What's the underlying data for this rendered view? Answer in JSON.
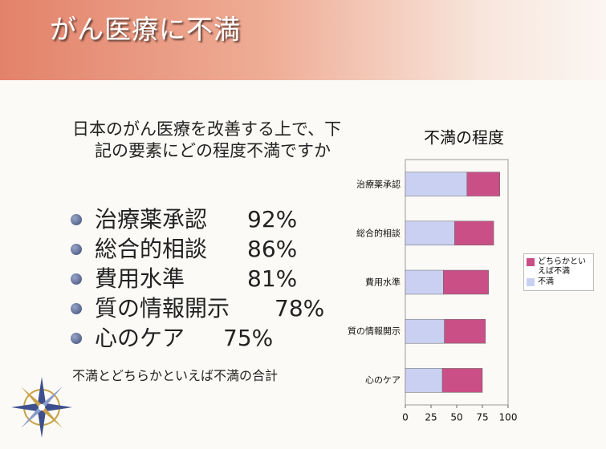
{
  "header": {
    "title": "がん医療に不満"
  },
  "question": "日本のがん医療を改善する上で、下記の要素にどの程度不満ですか",
  "items": [
    {
      "label": "治療薬承認",
      "value": "92%"
    },
    {
      "label": "総合的相談",
      "value": "86%"
    },
    {
      "label": "費用水準",
      "value": "81%"
    },
    {
      "label": "質の情報開示",
      "value": "78%"
    },
    {
      "label": "心のケア",
      "value": "75%"
    }
  ],
  "note": "不満とどちらかといえば不満の合計",
  "chart_data": {
    "type": "bar",
    "orientation": "horizontal",
    "stacked": true,
    "title": "不満の程度",
    "categories": [
      "治療薬承認",
      "総合的相談",
      "費用水準",
      "質の情報開示",
      "心のケア"
    ],
    "series": [
      {
        "name": "どちらかといえば不満",
        "color": "#c94f86",
        "values": [
          32,
          38,
          44,
          40,
          39
        ]
      },
      {
        "name": "不満",
        "color": "#c9d0f2",
        "values": [
          60,
          48,
          37,
          38,
          36
        ]
      }
    ],
    "xlim": [
      0,
      100
    ],
    "xticks": [
      0,
      25,
      50,
      75,
      100
    ],
    "legend": "right"
  }
}
